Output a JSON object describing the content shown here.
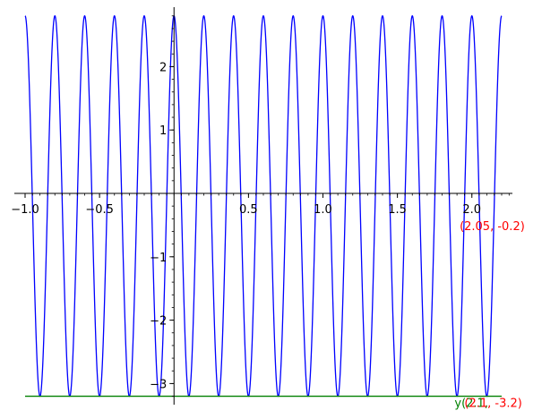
{
  "chart_data": {
    "type": "line",
    "xlim": [
      -1.0,
      2.25
    ],
    "ylim": [
      -3.2,
      2.8
    ],
    "grid": false,
    "x_ticks": [
      {
        "value": -1.0,
        "label": "−1.0"
      },
      {
        "value": -0.5,
        "label": "−0.5"
      },
      {
        "value": 0.5,
        "label": "0.5"
      },
      {
        "value": 1.0,
        "label": "1.0"
      },
      {
        "value": 1.5,
        "label": "1.5"
      },
      {
        "value": 2.0,
        "label": "2.0"
      }
    ],
    "y_ticks": [
      {
        "value": -3,
        "label": "−3"
      },
      {
        "value": -2,
        "label": "−2"
      },
      {
        "value": -1,
        "label": "−1"
      },
      {
        "value": 1,
        "label": "1"
      },
      {
        "value": 2,
        "label": "2"
      }
    ],
    "series": [
      {
        "kind": "curve",
        "expression": "-0.2 + 3*cos(10*pi*x)",
        "x_range": [
          -1.0,
          2.2
        ],
        "color": "#0000ff"
      },
      {
        "kind": "hline",
        "y": -3.2,
        "x_range": [
          -1.0,
          2.2
        ],
        "color": "#008000"
      }
    ],
    "annotations": [
      {
        "text": "(2.05, -0.2)",
        "x": 2.05,
        "y": -0.2,
        "color": "#ff0000"
      },
      {
        "text": "y(2.1,",
        "x": 2.1,
        "y": -3.2,
        "color": "#008000"
      },
      {
        "text": "(2.1, -3.2)",
        "x": 2.1,
        "y": -3.2,
        "color": "#ff0000"
      }
    ]
  }
}
